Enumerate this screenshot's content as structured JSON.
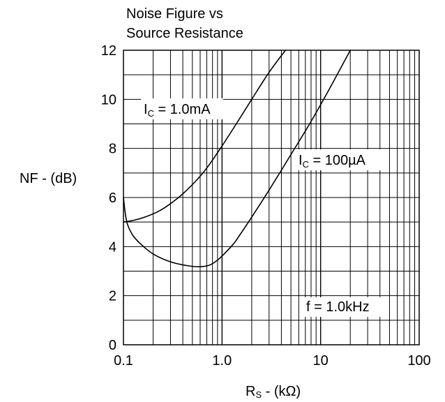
{
  "chart_data": {
    "type": "line",
    "title_lines": [
      "Noise Figure vs",
      "Source Resistance"
    ],
    "ylabel": "NF - (dB)",
    "xlabel": {
      "main": "R",
      "sub": "S",
      "rest": " - (kΩ)"
    },
    "x_scale": "log",
    "xlim": [
      0.1,
      100
    ],
    "ylim": [
      0,
      12
    ],
    "x_ticks": [
      {
        "value": 0.1,
        "label": "0.1"
      },
      {
        "value": 1,
        "label": "1.0"
      },
      {
        "value": 10,
        "label": "10"
      },
      {
        "value": 100,
        "label": "100"
      }
    ],
    "y_ticks": [
      {
        "value": 0,
        "label": "0"
      },
      {
        "value": 2,
        "label": "2"
      },
      {
        "value": 4,
        "label": "4"
      },
      {
        "value": 6,
        "label": "6"
      },
      {
        "value": 8,
        "label": "8"
      },
      {
        "value": 10,
        "label": "10"
      },
      {
        "value": 12,
        "label": "12"
      }
    ],
    "grid": true,
    "series": [
      {
        "name": "IC = 1.0mA",
        "color": "#000000",
        "x": [
          0.1,
          0.13,
          0.17,
          0.23,
          0.3,
          0.4,
          0.55,
          0.7,
          1.0,
          1.5,
          2.0,
          3.0,
          4.4
        ],
        "y": [
          5.0,
          5.08,
          5.22,
          5.45,
          5.75,
          6.15,
          6.7,
          7.2,
          8.1,
          9.2,
          10.0,
          11.1,
          12.0
        ]
      },
      {
        "name": "IC = 100µA",
        "color": "#000000",
        "x": [
          0.1,
          0.104,
          0.11,
          0.125,
          0.15,
          0.2,
          0.3,
          0.45,
          0.6,
          0.75,
          0.9,
          1.05,
          1.3,
          1.5,
          2.0,
          3.0,
          5.0,
          8.0,
          12.0,
          20.0
        ],
        "y": [
          6.0,
          5.4,
          4.9,
          4.45,
          4.1,
          3.7,
          3.38,
          3.22,
          3.18,
          3.25,
          3.45,
          3.7,
          4.1,
          4.45,
          5.2,
          6.3,
          7.75,
          9.1,
          10.35,
          12.0
        ]
      }
    ],
    "annotations": [
      {
        "main": "I",
        "sub": "C",
        "rest": " = 1.0mA"
      },
      {
        "main": "I",
        "sub": "C",
        "rest": " = 100µA"
      },
      {
        "main": "f = 1.0kHz",
        "sub": "",
        "rest": ""
      }
    ]
  }
}
